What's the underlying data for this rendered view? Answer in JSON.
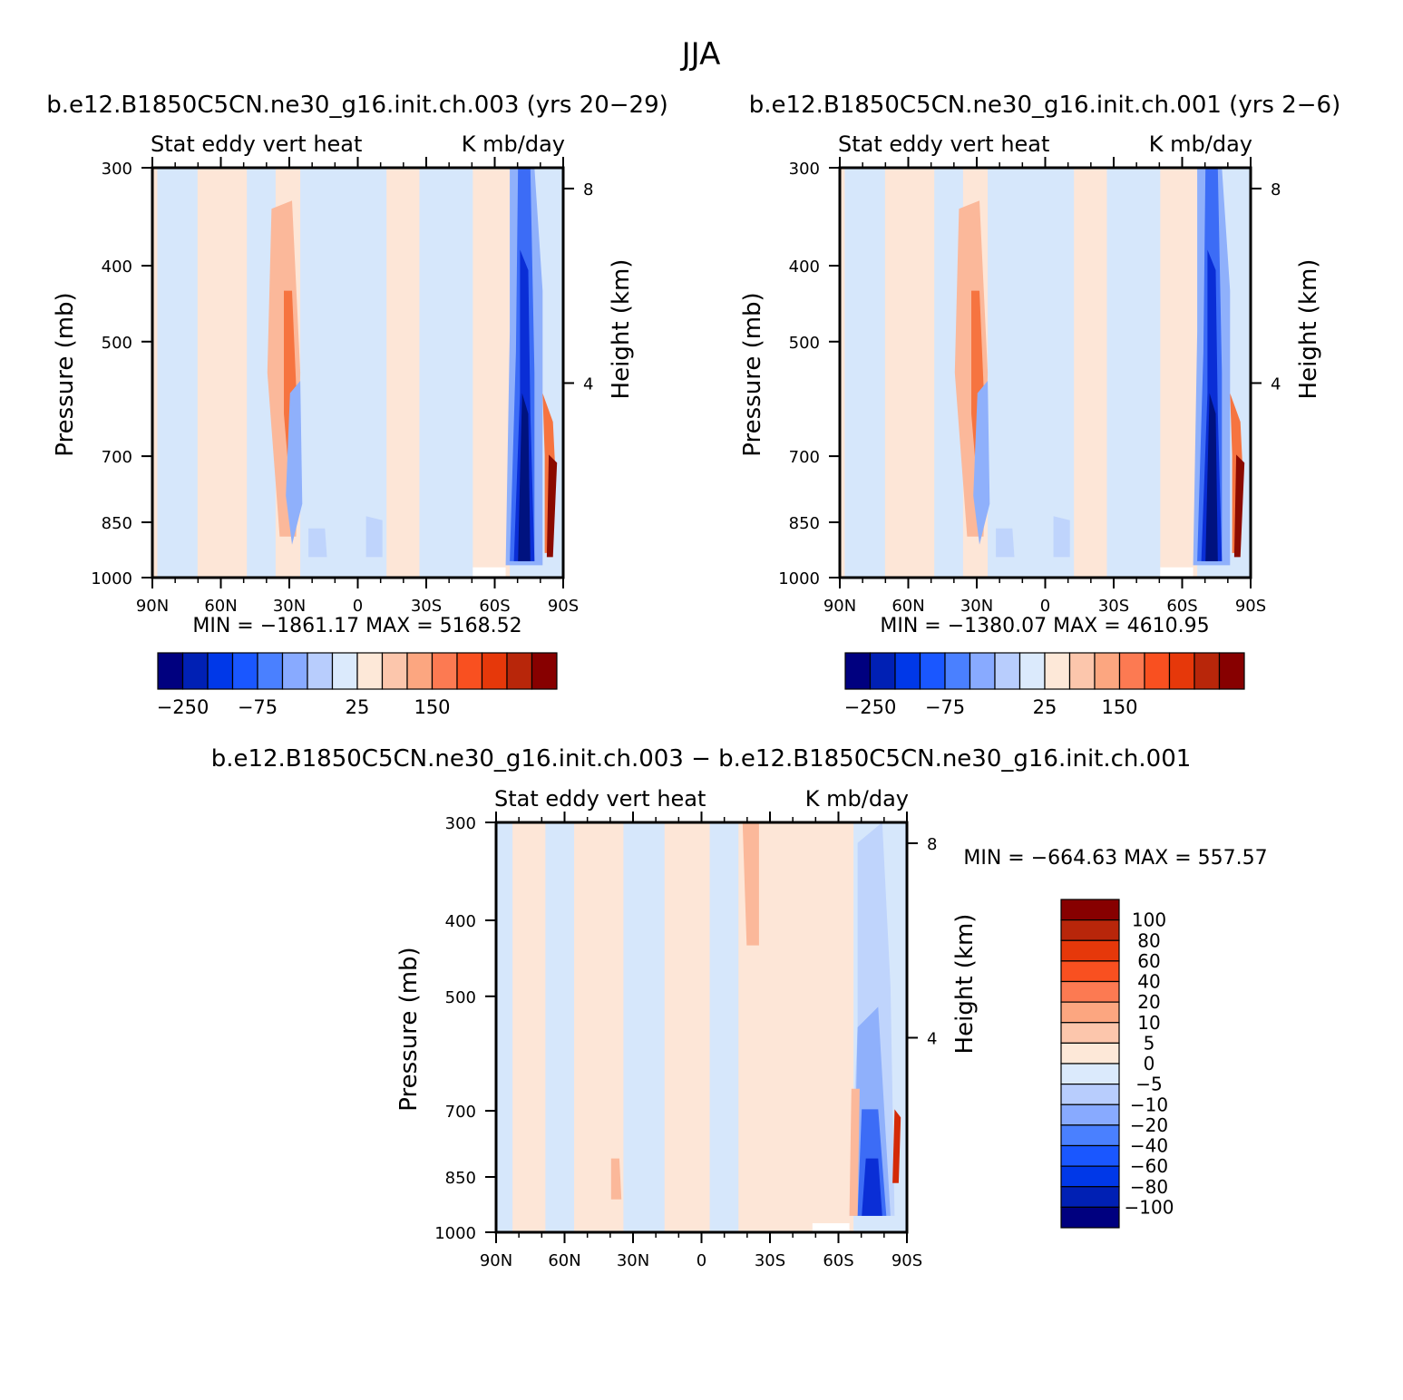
{
  "figure": {
    "title": "JJA"
  },
  "chart_data": [
    {
      "type": "heatmap",
      "title": "b.e12.B1850C5CN.ne30_g16.init.ch.003 (yrs 20-29)",
      "left_label": "Stat eddy vert heat",
      "right_label": "K mb/day",
      "ylabel": "Pressure (mb)",
      "y2label": "Height (km)",
      "x_ticks": [
        "90N",
        "60N",
        "30N",
        "0",
        "30S",
        "60S",
        "90S"
      ],
      "y_ticks": [
        300,
        400,
        500,
        700,
        850,
        1000
      ],
      "y2_ticks": [
        8,
        4
      ],
      "ylim": [
        1000,
        300
      ],
      "stats": "MIN = -1861.17   MAX = 5168.52",
      "colorbar_labels": [
        "-250",
        "-75",
        "25",
        "150"
      ]
    },
    {
      "type": "heatmap",
      "title": "b.e12.B1850C5CN.ne30_g16.init.ch.001 (yrs 2-6)",
      "left_label": "Stat eddy vert heat",
      "right_label": "K mb/day",
      "ylabel": "Pressure (mb)",
      "y2label": "Height (km)",
      "x_ticks": [
        "90N",
        "60N",
        "30N",
        "0",
        "30S",
        "60S",
        "90S"
      ],
      "y_ticks": [
        300,
        400,
        500,
        700,
        850,
        1000
      ],
      "y2_ticks": [
        8,
        4
      ],
      "ylim": [
        1000,
        300
      ],
      "stats": "MIN = -1380.07   MAX = 4610.95",
      "colorbar_labels": [
        "-250",
        "-75",
        "25",
        "150"
      ]
    },
    {
      "type": "heatmap",
      "title": "b.e12.B1850C5CN.ne30_g16.init.ch.003 - b.e12.B1850C5CN.ne30_g16.init.ch.001",
      "left_label": "Stat eddy vert heat",
      "right_label": "K mb/day",
      "ylabel": "Pressure (mb)",
      "y2label": "Height (km)",
      "x_ticks": [
        "90N",
        "60N",
        "30N",
        "0",
        "30S",
        "60S",
        "90S"
      ],
      "y_ticks": [
        300,
        400,
        500,
        700,
        850,
        1000
      ],
      "y2_ticks": [
        8,
        4
      ],
      "ylim": [
        1000,
        300
      ],
      "stats": "MIN = -664.63   MAX = 557.57",
      "colorbar_labels": [
        "100",
        "80",
        "60",
        "40",
        "20",
        "10",
        "5",
        "0",
        "-5",
        "-10",
        "-20",
        "-40",
        "-60",
        "-80",
        "-100"
      ]
    }
  ],
  "colorbar_colors": [
    "#00007f",
    "#0020b4",
    "#0038e8",
    "#1a57ff",
    "#4a80ff",
    "#88aaff",
    "#b8cdfd",
    "#dbeafc",
    "#fde8d8",
    "#fcc6ac",
    "#fca680",
    "#fc7a52",
    "#f95020",
    "#e6380a",
    "#b8260a",
    "#870000"
  ],
  "field_colors": {
    "light_blue": "#d6e7fb",
    "pale_blue": "#bfd4fc",
    "mid_blue": "#8fb0fb",
    "blue": "#3c6cf6",
    "deep_blue": "#0a2ed6",
    "navy": "#00127f",
    "light_pink": "#fde6d7",
    "salmon": "#fbb89a",
    "orange": "#f67440",
    "red": "#d42a08",
    "dark_red": "#8a0a00"
  }
}
